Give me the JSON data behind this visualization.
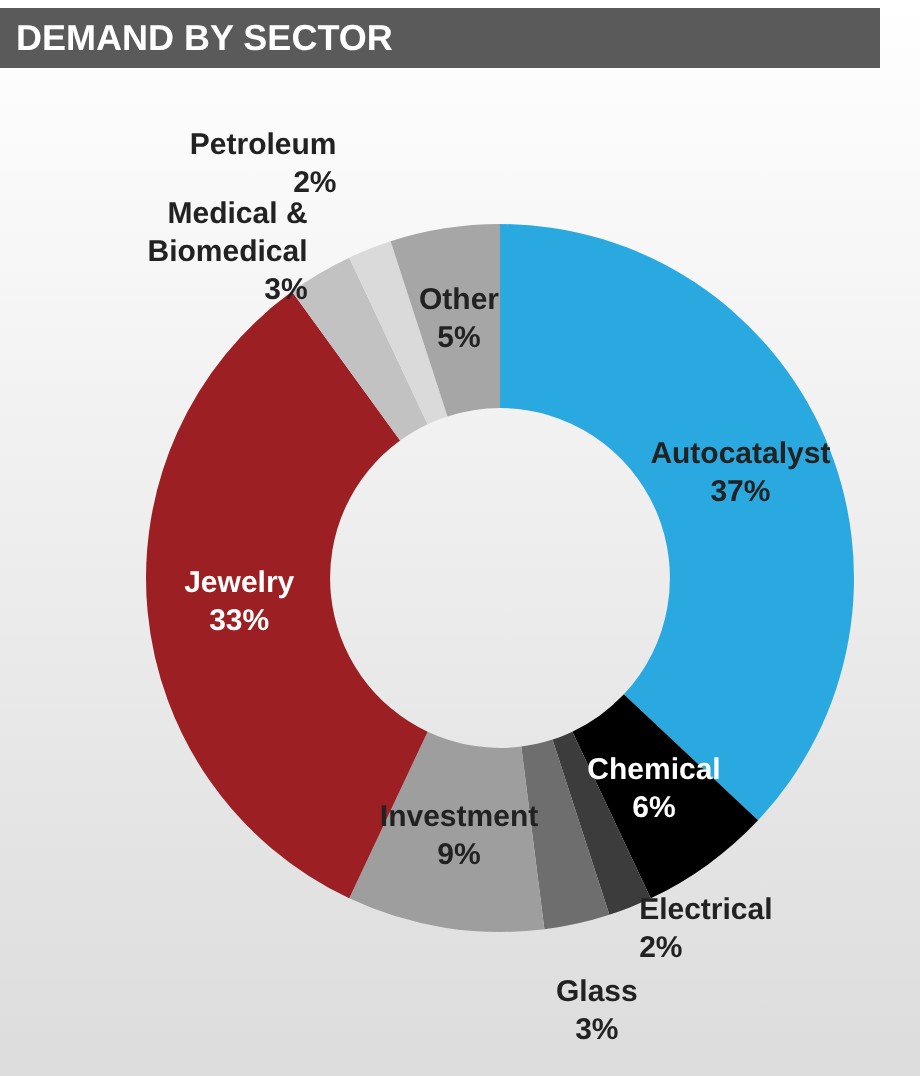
{
  "chart_data": {
    "type": "donut",
    "title": "DEMAND BY SECTOR",
    "categories": [
      "Autocatalyst",
      "Chemical",
      "Electrical",
      "Glass",
      "Investment",
      "Jewelry",
      "Medical & Biomedical",
      "Petroleum",
      "Other"
    ],
    "values": [
      37,
      6,
      2,
      3,
      9,
      33,
      3,
      2,
      5
    ],
    "colors": [
      "#29a9e0",
      "#000000",
      "#3c3c3c",
      "#6e6e6e",
      "#9e9e9e",
      "#9b1f23",
      "#c2c2c2",
      "#dadada",
      "#a6a6a6"
    ],
    "value_labels": [
      "37%",
      "6%",
      "2%",
      "3%",
      "9%",
      "33%",
      "3%",
      "2%",
      "5%"
    ],
    "legend": false
  }
}
